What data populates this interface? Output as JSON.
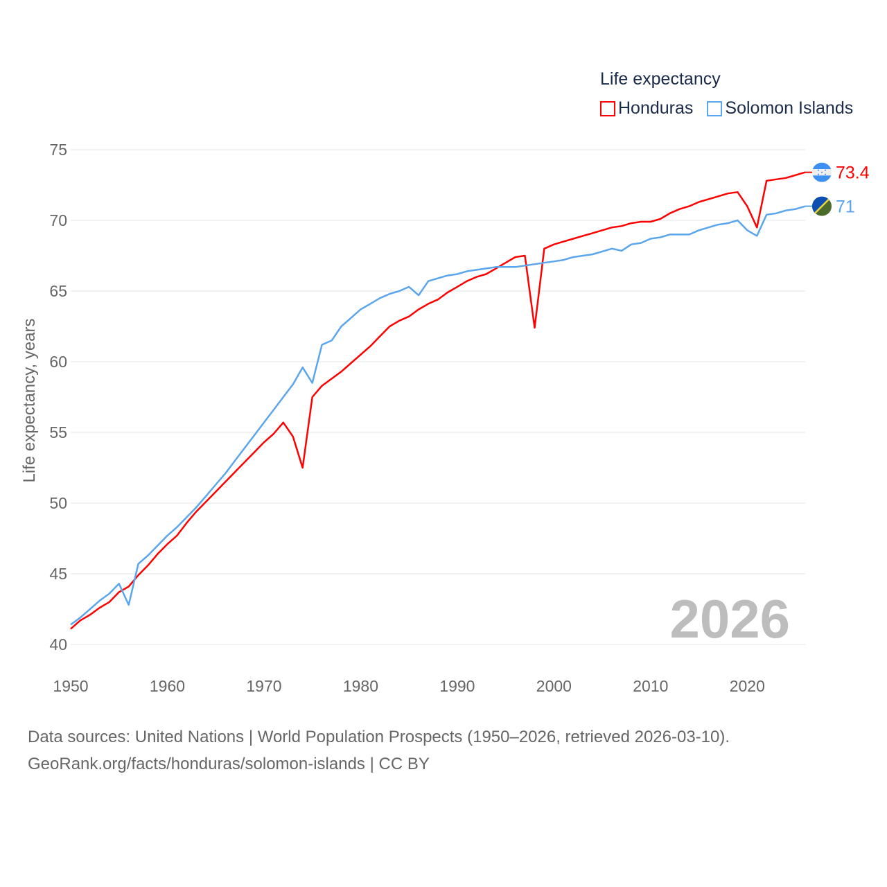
{
  "legend": {
    "title": "Life expectancy"
  },
  "year_watermark": "2026",
  "footer": {
    "line1": "Data sources: United Nations | World Population Prospects (1950–2026, retrieved 2026-03-10).",
    "line2": "GeoRank.org/facts/honduras/solomon-islands | CC BY"
  },
  "chart_data": {
    "type": "line",
    "title": "Life expectancy",
    "xlabel": "",
    "ylabel": "Life expectancy, years",
    "xlim": [
      1950,
      2026
    ],
    "ylim": [
      40,
      75
    ],
    "xticks": [
      "1950",
      "1960",
      "1970",
      "1980",
      "1990",
      "2000",
      "2010",
      "2020"
    ],
    "yticks": [
      "40",
      "45",
      "50",
      "55",
      "60",
      "65",
      "70",
      "75"
    ],
    "grid": true,
    "legend_position": "top-right",
    "x": [
      1950,
      1951,
      1952,
      1953,
      1954,
      1955,
      1956,
      1957,
      1958,
      1959,
      1960,
      1961,
      1962,
      1963,
      1964,
      1965,
      1966,
      1967,
      1968,
      1969,
      1970,
      1971,
      1972,
      1973,
      1974,
      1975,
      1976,
      1977,
      1978,
      1979,
      1980,
      1981,
      1982,
      1983,
      1984,
      1985,
      1986,
      1987,
      1988,
      1989,
      1990,
      1991,
      1992,
      1993,
      1994,
      1995,
      1996,
      1997,
      1998,
      1999,
      2000,
      2001,
      2002,
      2003,
      2004,
      2005,
      2006,
      2007,
      2008,
      2009,
      2010,
      2011,
      2012,
      2013,
      2014,
      2015,
      2016,
      2017,
      2018,
      2019,
      2020,
      2021,
      2022,
      2023,
      2024,
      2025,
      2026
    ],
    "series": [
      {
        "name": "Honduras",
        "color": "#ff0000",
        "end_label": "73.4",
        "flag": "honduras-flag",
        "values": [
          41.1,
          41.7,
          42.1,
          42.6,
          43.0,
          43.7,
          44.1,
          44.9,
          45.6,
          46.4,
          47.1,
          47.7,
          48.6,
          49.4,
          50.1,
          50.8,
          51.5,
          52.2,
          52.9,
          53.6,
          54.3,
          54.9,
          55.7,
          54.7,
          52.5,
          57.5,
          58.3,
          58.8,
          59.3,
          59.9,
          60.5,
          61.1,
          61.8,
          62.5,
          62.9,
          63.2,
          63.7,
          64.1,
          64.4,
          64.9,
          65.3,
          65.7,
          66.0,
          66.2,
          66.6,
          67.0,
          67.4,
          67.5,
          62.4,
          68.0,
          68.3,
          68.5,
          68.7,
          68.9,
          69.1,
          69.3,
          69.5,
          69.6,
          69.8,
          69.9,
          69.9,
          70.1,
          70.5,
          70.8,
          71.0,
          71.3,
          71.5,
          71.7,
          71.9,
          72.0,
          71.0,
          69.5,
          72.8,
          72.9,
          73.0,
          73.2,
          73.4
        ]
      },
      {
        "name": "Solomon Islands",
        "color": "#5aa5ec",
        "end_label": "71",
        "flag": "solomon-islands-flag",
        "values": [
          41.4,
          41.9,
          42.5,
          43.1,
          43.6,
          44.3,
          42.8,
          45.7,
          46.3,
          47.0,
          47.7,
          48.3,
          49.0,
          49.7,
          50.5,
          51.3,
          52.1,
          53.0,
          53.9,
          54.8,
          55.7,
          56.6,
          57.5,
          58.4,
          59.6,
          58.5,
          61.2,
          61.5,
          62.5,
          63.1,
          63.7,
          64.1,
          64.5,
          64.8,
          65.0,
          65.3,
          64.7,
          65.7,
          65.9,
          66.1,
          66.2,
          66.4,
          66.5,
          66.6,
          66.7,
          66.7,
          66.7,
          66.8,
          66.9,
          67.0,
          67.1,
          67.2,
          67.4,
          67.5,
          67.6,
          67.8,
          68.0,
          67.85,
          68.3,
          68.4,
          68.7,
          68.8,
          69.0,
          69.0,
          69.0,
          69.3,
          69.5,
          69.7,
          69.8,
          70.0,
          69.3,
          68.9,
          70.4,
          70.5,
          70.7,
          70.8,
          71.0
        ]
      }
    ]
  }
}
